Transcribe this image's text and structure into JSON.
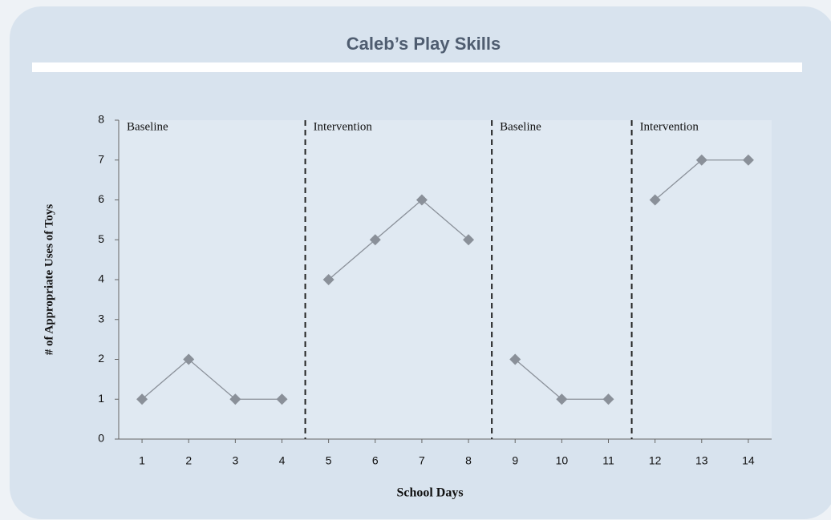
{
  "chart_data": {
    "type": "line",
    "title": "Caleb’s Play Skills",
    "x_label": "School Days",
    "y_label": "# of Appropriate Uses of Toys",
    "color": "#8a9099",
    "series": [
      {
        "name": "Baseline",
        "x": [
          1,
          2,
          3,
          4
        ],
        "values": [
          1,
          2,
          1,
          1
        ]
      },
      {
        "name": "Intervention",
        "x": [
          5,
          6,
          7,
          8
        ],
        "values": [
          4,
          5,
          6,
          5
        ]
      },
      {
        "name": "Baseline",
        "x": [
          9,
          10,
          11
        ],
        "values": [
          2,
          1,
          1
        ]
      },
      {
        "name": "Intervention",
        "x": [
          12,
          13,
          14
        ],
        "values": [
          6,
          7,
          7
        ]
      }
    ],
    "xlim": [
      0.5,
      14.5
    ],
    "xticks": [
      1,
      2,
      3,
      4,
      5,
      6,
      7,
      8,
      9,
      10,
      11,
      12,
      13,
      14
    ],
    "ylim": [
      0,
      8
    ],
    "yticks": [
      0,
      1,
      2,
      3,
      4,
      5,
      6,
      7,
      8
    ]
  }
}
